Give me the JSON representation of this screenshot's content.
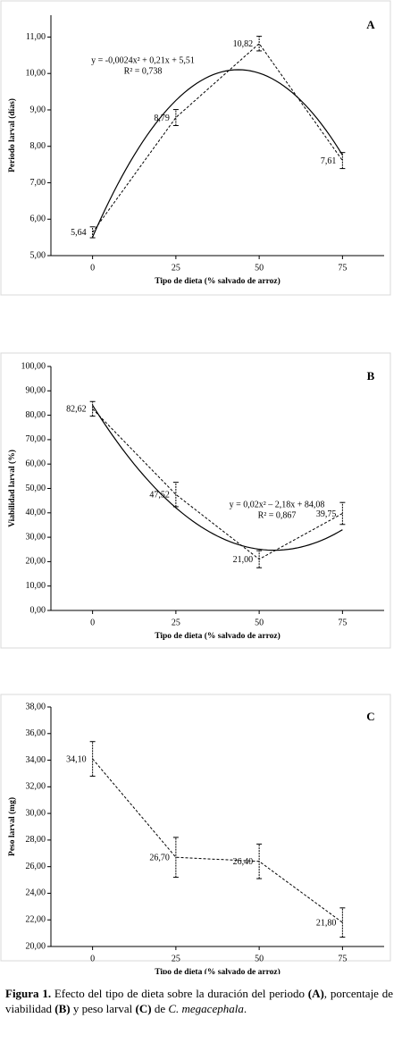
{
  "chart_data": [
    {
      "type": "line",
      "panel_label": "A",
      "y_label": "Periodo larval (días)",
      "x_label": "Tipo de dieta (% salvado de arroz)",
      "x": [
        0,
        25,
        50,
        75
      ],
      "xlim": [
        -12.5,
        87.5
      ],
      "xticks": [
        0,
        25,
        50,
        75
      ],
      "ylim": [
        5,
        11.6
      ],
      "yticks": [
        {
          "value": 5,
          "label": "5,00"
        },
        {
          "value": 6,
          "label": "6,00"
        },
        {
          "value": 7,
          "label": "7,00"
        },
        {
          "value": 8,
          "label": "8,00"
        },
        {
          "value": 9,
          "label": "9,00"
        },
        {
          "value": 10,
          "label": "10,00"
        },
        {
          "value": 11,
          "label": "11,00"
        }
      ],
      "line_style": "dashed",
      "color": "#000000",
      "values": [
        5.64,
        8.79,
        10.82,
        7.61
      ],
      "value_labels": [
        "5,64",
        "8,79",
        "10,82",
        "7,61"
      ],
      "errors": [
        0.15,
        0.22,
        0.2,
        0.22
      ],
      "trendline": {
        "coefficients": [
          -0.0024,
          0.21,
          5.51
        ],
        "equation": "y = -0,0024x² + 0,21x + 5,51",
        "r2": "R² = 0,738"
      }
    },
    {
      "type": "line",
      "panel_label": "B",
      "y_label": "Viabilidad larval (%)",
      "x_label": "Tipo de dieta (% salvado de arroz)",
      "x": [
        0,
        25,
        50,
        75
      ],
      "xlim": [
        -12.5,
        87.5
      ],
      "xticks": [
        0,
        25,
        50,
        75
      ],
      "ylim": [
        0,
        100
      ],
      "yticks": [
        {
          "value": 0,
          "label": "0,00"
        },
        {
          "value": 10,
          "label": "10,00"
        },
        {
          "value": 20,
          "label": "20,00"
        },
        {
          "value": 30,
          "label": "30,00"
        },
        {
          "value": 40,
          "label": "40,00"
        },
        {
          "value": 50,
          "label": "50,00"
        },
        {
          "value": 60,
          "label": "60,00"
        },
        {
          "value": 70,
          "label": "70,00"
        },
        {
          "value": 80,
          "label": "80,00"
        },
        {
          "value": 90,
          "label": "90,00"
        },
        {
          "value": 100,
          "label": "100,00"
        }
      ],
      "line_style": "dashed",
      "color": "#000000",
      "values": [
        82.62,
        47.52,
        21.0,
        39.75
      ],
      "value_labels": [
        "82,62",
        "47,52",
        "21,00",
        "39,75"
      ],
      "errors": [
        3,
        5,
        3.5,
        4.5
      ],
      "trendline": {
        "coefficients": [
          0.02,
          -2.18,
          84.08
        ],
        "equation": "y = 0,02x² – 2,18x + 84,08",
        "r2": "R² = 0,867"
      }
    },
    {
      "type": "line",
      "panel_label": "C",
      "y_label": "Peso larval (mg)",
      "x_label": "Tipo de dieta (% salvado de arroz)",
      "x": [
        0,
        25,
        50,
        75
      ],
      "xlim": [
        -12.5,
        87.5
      ],
      "xticks": [
        0,
        25,
        50,
        75
      ],
      "ylim": [
        20,
        38
      ],
      "yticks": [
        {
          "value": 20,
          "label": "20,00"
        },
        {
          "value": 22,
          "label": "22,00"
        },
        {
          "value": 24,
          "label": "24,00"
        },
        {
          "value": 26,
          "label": "26,00"
        },
        {
          "value": 28,
          "label": "28,00"
        },
        {
          "value": 30,
          "label": "30,00"
        },
        {
          "value": 32,
          "label": "32,00"
        },
        {
          "value": 34,
          "label": "34,00"
        },
        {
          "value": 36,
          "label": "36,00"
        },
        {
          "value": 38,
          "label": "38,00"
        }
      ],
      "line_style": "dashed",
      "color": "#000000",
      "values": [
        34.1,
        26.7,
        26.4,
        21.8
      ],
      "value_labels": [
        "34,10",
        "26,70",
        "26,40",
        "21,80"
      ],
      "errors": [
        1.3,
        1.5,
        1.3,
        1.1
      ]
    }
  ],
  "caption": [
    "Figura 1.",
    " Efecto del tipo de dieta sobre la duración del periodo ",
    "(A)",
    ", porcentaje de viabilidad ",
    "(B)",
    " y peso larval ",
    "(C)",
    " de ",
    "C. megacephala",
    "."
  ]
}
